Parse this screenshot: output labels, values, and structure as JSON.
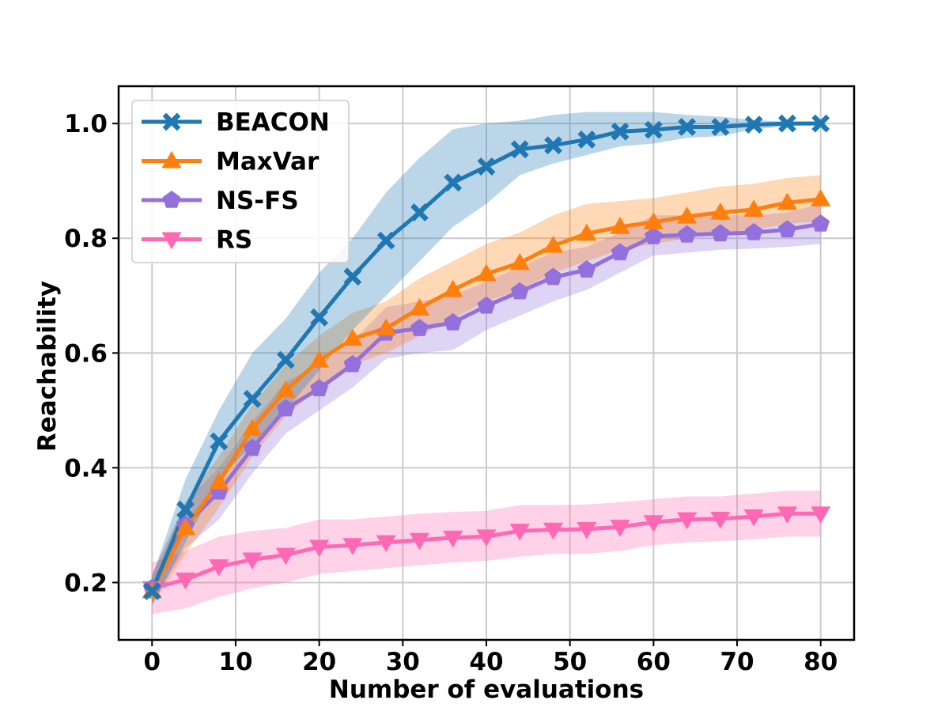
{
  "chart_data": {
    "type": "line",
    "xlabel": "Number of evaluations",
    "ylabel": "Reachability",
    "xlim": [
      -4,
      84
    ],
    "ylim": [
      0.1,
      1.065
    ],
    "xticks": [
      0,
      10,
      20,
      30,
      40,
      50,
      60,
      70,
      80
    ],
    "yticks": [
      0.2,
      0.4,
      0.6,
      0.8,
      1.0
    ],
    "xtick_labels": [
      "0",
      "10",
      "20",
      "30",
      "40",
      "50",
      "60",
      "70",
      "80"
    ],
    "ytick_labels": [
      "0.2",
      "0.4",
      "0.6",
      "0.8",
      "1.0"
    ],
    "grid": true,
    "legend_position": "top-left",
    "x": [
      0,
      4,
      8,
      12,
      16,
      20,
      24,
      28,
      32,
      36,
      40,
      44,
      48,
      52,
      56,
      60,
      64,
      68,
      72,
      76,
      80
    ],
    "series": [
      {
        "name": "BEACON",
        "color": "#1f77b4",
        "marker": "x",
        "values": [
          0.185,
          0.327,
          0.446,
          0.52,
          0.588,
          0.662,
          0.733,
          0.796,
          0.845,
          0.897,
          0.925,
          0.955,
          0.962,
          0.972,
          0.986,
          0.989,
          0.994,
          0.994,
          0.998,
          1.0,
          1.0
        ],
        "lower": [
          0.16,
          0.27,
          0.38,
          0.44,
          0.5,
          0.57,
          0.64,
          0.7,
          0.76,
          0.82,
          0.86,
          0.91,
          0.93,
          0.945,
          0.96,
          0.965,
          0.975,
          0.978,
          0.99,
          0.995,
          0.998
        ],
        "upper": [
          0.21,
          0.38,
          0.5,
          0.6,
          0.66,
          0.74,
          0.8,
          0.88,
          0.94,
          0.99,
          1.0,
          1.005,
          1.015,
          1.02,
          1.02,
          1.02,
          1.015,
          1.012,
          1.006,
          1.003,
          1.002
        ]
      },
      {
        "name": "MaxVar",
        "color": "#ff7f0e",
        "marker": "triangle-up",
        "values": [
          0.185,
          0.295,
          0.375,
          0.468,
          0.535,
          0.587,
          0.625,
          0.643,
          0.678,
          0.71,
          0.738,
          0.757,
          0.787,
          0.808,
          0.82,
          0.828,
          0.838,
          0.845,
          0.85,
          0.862,
          0.868
        ],
        "lower": [
          0.16,
          0.25,
          0.33,
          0.42,
          0.49,
          0.54,
          0.58,
          0.6,
          0.63,
          0.66,
          0.69,
          0.71,
          0.74,
          0.76,
          0.78,
          0.79,
          0.8,
          0.81,
          0.815,
          0.825,
          0.83
        ],
        "upper": [
          0.21,
          0.34,
          0.42,
          0.51,
          0.58,
          0.63,
          0.67,
          0.69,
          0.73,
          0.76,
          0.79,
          0.81,
          0.84,
          0.86,
          0.865,
          0.87,
          0.88,
          0.89,
          0.895,
          0.905,
          0.91
        ]
      },
      {
        "name": "NS-FS",
        "color": "#9370db",
        "marker": "pentagon",
        "values": [
          0.19,
          0.3,
          0.358,
          0.434,
          0.503,
          0.538,
          0.58,
          0.635,
          0.643,
          0.653,
          0.682,
          0.707,
          0.732,
          0.745,
          0.775,
          0.803,
          0.806,
          0.808,
          0.81,
          0.815,
          0.825
        ],
        "lower": [
          0.165,
          0.26,
          0.31,
          0.39,
          0.46,
          0.5,
          0.54,
          0.59,
          0.6,
          0.605,
          0.64,
          0.665,
          0.69,
          0.71,
          0.74,
          0.77,
          0.775,
          0.78,
          0.782,
          0.785,
          0.79
        ],
        "upper": [
          0.215,
          0.34,
          0.4,
          0.48,
          0.55,
          0.58,
          0.62,
          0.68,
          0.69,
          0.7,
          0.725,
          0.75,
          0.775,
          0.785,
          0.81,
          0.84,
          0.84,
          0.84,
          0.84,
          0.845,
          0.86
        ]
      },
      {
        "name": "RS",
        "color": "#ff69b4",
        "marker": "triangle-down",
        "values": [
          0.19,
          0.205,
          0.228,
          0.24,
          0.248,
          0.262,
          0.265,
          0.27,
          0.274,
          0.278,
          0.28,
          0.29,
          0.292,
          0.293,
          0.297,
          0.305,
          0.31,
          0.311,
          0.315,
          0.32,
          0.32
        ],
        "lower": [
          0.145,
          0.155,
          0.175,
          0.19,
          0.2,
          0.215,
          0.22,
          0.225,
          0.23,
          0.235,
          0.238,
          0.245,
          0.25,
          0.25,
          0.255,
          0.265,
          0.27,
          0.272,
          0.275,
          0.28,
          0.28
        ],
        "upper": [
          0.235,
          0.255,
          0.28,
          0.29,
          0.295,
          0.31,
          0.31,
          0.315,
          0.32,
          0.323,
          0.325,
          0.335,
          0.335,
          0.336,
          0.34,
          0.345,
          0.35,
          0.35,
          0.355,
          0.36,
          0.36
        ]
      }
    ]
  }
}
